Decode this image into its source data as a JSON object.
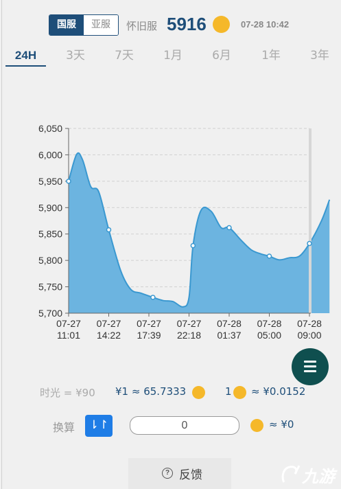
{
  "header": {
    "region_tabs": [
      {
        "label": "国服",
        "active": true
      },
      {
        "label": "亚服",
        "active": false
      }
    ],
    "server_label": "怀旧服",
    "price": "5916",
    "coin_icon": "gold-coin-icon",
    "timestamp": "07-28 10:42"
  },
  "range_tabs": [
    {
      "label": "24H",
      "active": true
    },
    {
      "label": "3天",
      "active": false
    },
    {
      "label": "7天",
      "active": false
    },
    {
      "label": "1月",
      "active": false
    },
    {
      "label": "6月",
      "active": false
    },
    {
      "label": "1年",
      "active": false
    },
    {
      "label": "3年",
      "active": false
    }
  ],
  "chart_data": {
    "type": "area",
    "title": "",
    "xlabel": "",
    "ylabel": "",
    "ylim": [
      5700,
      6050
    ],
    "y_ticks": [
      "5,700",
      "5,750",
      "5,800",
      "5,850",
      "5,900",
      "5,950",
      "6,000",
      "6,050"
    ],
    "x_ticks": [
      {
        "date": "07-27",
        "time": "11:01"
      },
      {
        "date": "07-27",
        "time": "14:22"
      },
      {
        "date": "07-27",
        "time": "17:39"
      },
      {
        "date": "07-27",
        "time": "22:18"
      },
      {
        "date": "07-28",
        "time": "01:37"
      },
      {
        "date": "07-28",
        "time": "05:00"
      },
      {
        "date": "07-28",
        "time": "09:00"
      }
    ],
    "grid": true,
    "fill_color": "#6cb4e0",
    "line_color": "#3a98d0",
    "series": [
      {
        "x": [
          0,
          0.2,
          0.35,
          0.55,
          0.75,
          1,
          1.3,
          1.55,
          1.8,
          2.1,
          2.35,
          2.6,
          2.85,
          3.0,
          3.1,
          3.3,
          3.55,
          3.8,
          4.0,
          4.3,
          4.55,
          4.8,
          5.0,
          5.25,
          5.5,
          5.75,
          6.0,
          6.3,
          6.5
        ],
        "values": [
          5950,
          6001,
          5990,
          5940,
          5930,
          5858,
          5780,
          5745,
          5738,
          5730,
          5724,
          5722,
          5712,
          5730,
          5828,
          5895,
          5893,
          5862,
          5862,
          5838,
          5820,
          5812,
          5808,
          5801,
          5805,
          5808,
          5832,
          5875,
          5915
        ],
        "markers": [
          0,
          5,
          9,
          14,
          18,
          22,
          26
        ]
      }
    ]
  },
  "menu_icon": "hamburger-menu-icon",
  "rates": {
    "time_rate": "时光 = ¥90",
    "rate1": "¥1 ≈ 65.7333",
    "rate2_amount": "1",
    "rate2_value": "≈ ¥0.0152"
  },
  "converter": {
    "label": "换算",
    "swap_icon": "swap-icon",
    "swap_glyph": "⇂↾",
    "input_value": "0",
    "result": "≈ ¥0"
  },
  "footer": {
    "help_glyph": "?",
    "feedback_label": "反馈",
    "watermark_text": "九游"
  }
}
